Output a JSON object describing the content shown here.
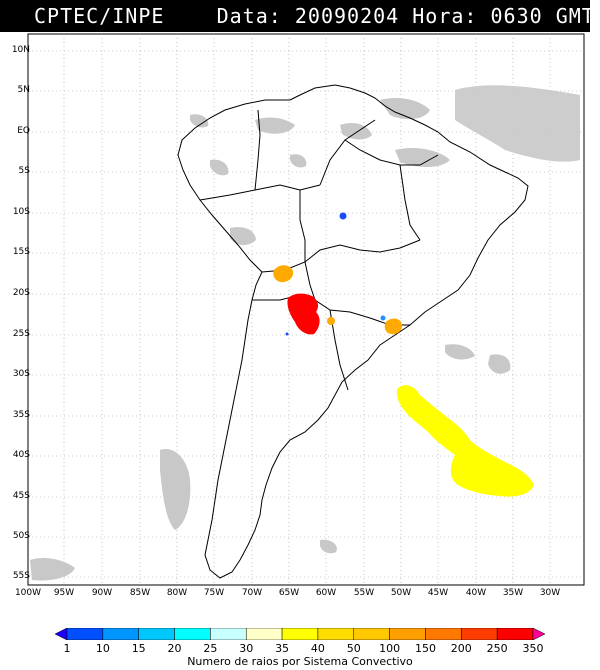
{
  "header": {
    "source": "CPTEC/INPE",
    "date_label": "Data:",
    "date": "20090204",
    "hour_label": "Hora:",
    "hour": "0630 GMT"
  },
  "map": {
    "lat_labels": [
      "10N",
      "5N",
      "EQ",
      "5S",
      "10S",
      "15S",
      "20S",
      "25S",
      "30S",
      "35S",
      "40S",
      "45S",
      "50S",
      "55S"
    ],
    "lon_labels": [
      "100W",
      "95W",
      "90W",
      "85W",
      "80W",
      "75W",
      "70W",
      "65W",
      "60W",
      "55W",
      "50W",
      "45W",
      "40W",
      "35W",
      "30W"
    ],
    "cloud_color": "#c8c8c8",
    "coast_color": "#000000"
  },
  "systems": [
    {
      "label": "Bolivia cluster",
      "color": "#ffaa00"
    },
    {
      "label": "Paraguay-Argentina cluster",
      "color": "#ff0000"
    },
    {
      "label": "Mato Grosso cell",
      "color": "#1a4cff"
    },
    {
      "label": "Parana cell",
      "color": "#ffaa00"
    },
    {
      "label": "South Atlantic band",
      "color": "#ffff00"
    }
  ],
  "colorbar": {
    "ticks": [
      "1",
      "10",
      "15",
      "20",
      "25",
      "30",
      "35",
      "40",
      "50",
      "100",
      "150",
      "200",
      "250",
      "350"
    ],
    "colors": [
      "#1e00ff",
      "#0050ff",
      "#0096ff",
      "#00c8ff",
      "#00ffff",
      "#c8ffff",
      "#ffffc8",
      "#ffff00",
      "#ffdc00",
      "#ffc800",
      "#ffa000",
      "#ff7800",
      "#ff3c00",
      "#ff0000",
      "#ff0096"
    ],
    "caption": "Numero de raios por Sistema Convectivo"
  }
}
